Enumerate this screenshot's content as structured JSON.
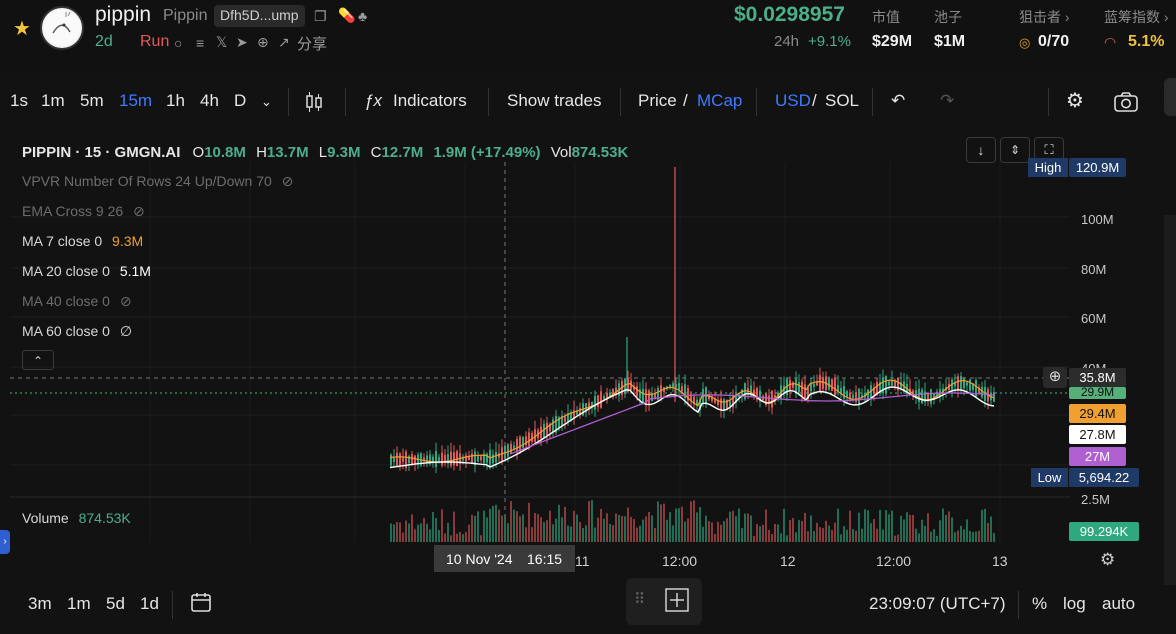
{
  "header": {
    "token_name": "pippin",
    "token_full": "Pippin",
    "address": "Dfh5D...ump",
    "age": "2d",
    "status": "Run",
    "share_label": "分享",
    "price": "$0.0298957",
    "change_label": "24h",
    "change_value": "+9.1%",
    "stats": [
      {
        "label": "市值",
        "value": "$29M"
      },
      {
        "label": "池子",
        "value": "$1M"
      },
      {
        "label": "狙击者 ›",
        "value": "0/70"
      },
      {
        "label": "蓝筹指数 ›",
        "value": "5.1%"
      }
    ]
  },
  "toolbar": {
    "intervals": [
      "1s",
      "1m",
      "5m",
      "15m",
      "1h",
      "4h",
      "D"
    ],
    "active_interval": "15m",
    "indicators_label": "Indicators",
    "show_trades_label": "Show trades",
    "price_label": "Price",
    "mcap_label": "MCap",
    "usd_label": "USD",
    "sol_label": "SOL"
  },
  "chart": {
    "title": "PIPPIN · 15 · GMGN.AI",
    "o_label": "O",
    "o": "10.8M",
    "h_label": "H",
    "h": "13.7M",
    "l_label": "L",
    "l": "9.3M",
    "c_label": "C",
    "c": "12.7M",
    "change": "1.9M (+17.49%)",
    "vol_label": "Vol",
    "vol": "874.53K",
    "indicators": [
      {
        "label": "VPVR Number Of Rows 24 Up/Down 70",
        "value": "",
        "dim": true
      },
      {
        "label": "EMA Cross 9 26",
        "value": "",
        "dim": true
      },
      {
        "label": "MA 7 close 0",
        "value": "9.3M",
        "dim": false
      },
      {
        "label": "MA 20 close 0",
        "value": "5.1M",
        "dim": false
      },
      {
        "label": "MA 40 close 0",
        "value": "",
        "dim": true
      },
      {
        "label": "MA 60 close 0",
        "value": "∅",
        "dim": false
      }
    ],
    "volume_label": "Volume",
    "volume_value": "874.53K",
    "y_ticks": [
      "100M",
      "80M",
      "60M",
      "40M",
      "2.5M"
    ],
    "tags": {
      "high_label": "High",
      "high": "120.9M",
      "cross": "35.8M",
      "g1": "29.9M",
      "ma7": "29.4M",
      "ma20": "27.8M",
      "ma40": "27M",
      "low_label": "Low",
      "low": "5,694.22",
      "vol": "99.294K"
    },
    "crosshair_time": "10 Nov '24",
    "crosshair_clock": "16:15",
    "x_ticks": [
      "11",
      "12:00",
      "12",
      "12:00",
      "13"
    ],
    "colors": {
      "up": "#2fa87f",
      "down": "#e05a5a",
      "ma7": "#f0a030",
      "ma20": "#ffffff",
      "ma40": "#b05fd0",
      "accent": "#3d7bff"
    }
  },
  "bottom": {
    "ranges": [
      "3m",
      "1m",
      "5d",
      "1d"
    ],
    "clock": "23:09:07 (UTC+7)",
    "pct_label": "%",
    "log_label": "log",
    "auto_label": "auto"
  }
}
